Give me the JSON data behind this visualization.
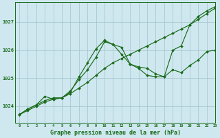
{
  "title": "Graphe pression niveau de la mer (hPa)",
  "bg_color": "#cfe8f0",
  "grid_color": "#a8c8d0",
  "line_color": "#1a6b1a",
  "xlim": [
    -0.5,
    23
  ],
  "ylim": [
    1023.4,
    1027.7
  ],
  "yticks": [
    1024,
    1025,
    1026,
    1027
  ],
  "xticks": [
    0,
    1,
    2,
    3,
    4,
    5,
    6,
    7,
    8,
    9,
    10,
    11,
    12,
    13,
    14,
    15,
    16,
    17,
    18,
    19,
    20,
    21,
    22,
    23
  ],
  "series": [
    [
      1023.7,
      1023.85,
      1024.0,
      1024.15,
      1024.25,
      1024.3,
      1024.45,
      1024.65,
      1024.85,
      1025.1,
      1025.35,
      1025.55,
      1025.7,
      1025.85,
      1026.0,
      1026.15,
      1026.3,
      1026.45,
      1026.6,
      1026.75,
      1026.9,
      1027.1,
      1027.3,
      1027.5
    ],
    [
      1023.7,
      1023.9,
      1024.05,
      1024.2,
      1024.3,
      1024.3,
      1024.5,
      1025.05,
      1025.55,
      1026.05,
      1026.35,
      1026.2,
      1026.1,
      1025.5,
      1025.4,
      1025.35,
      1025.15,
      1025.05,
      1026.0,
      1026.15,
      1026.9,
      1027.2,
      1027.4,
      1027.55
    ],
    [
      1023.7,
      1023.9,
      1024.05,
      1024.35,
      1024.25,
      1024.3,
      1024.55,
      1024.95,
      1025.3,
      1025.75,
      1026.3,
      1026.2,
      1025.85,
      1025.5,
      1025.35,
      1025.1,
      1025.05,
      1025.05,
      1025.3,
      1025.2,
      1025.45,
      1025.65,
      1025.95,
      1026.0
    ]
  ]
}
